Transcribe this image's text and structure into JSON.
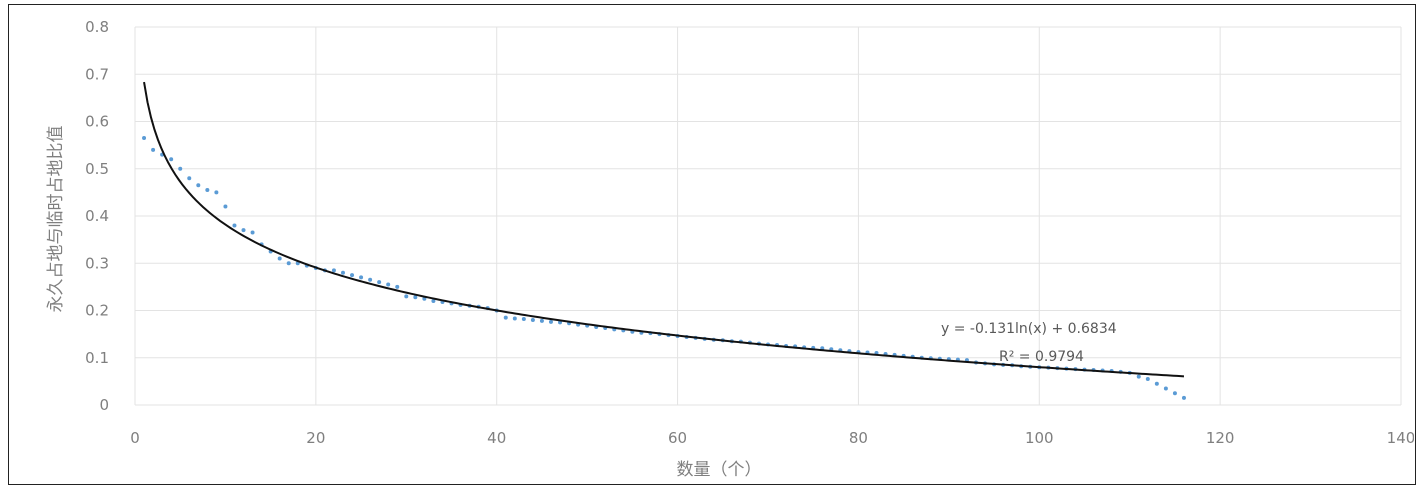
{
  "chart_data": {
    "type": "scatter",
    "xlabel": "数量（个）",
    "ylabel": "永久占地与临时占地比值",
    "xlim": [
      0,
      140
    ],
    "ylim": [
      0,
      0.8
    ],
    "x_ticks": [
      "0",
      "20",
      "40",
      "60",
      "80",
      "100",
      "120",
      "140"
    ],
    "y_ticks": [
      "0",
      "0.1",
      "0.2",
      "0.3",
      "0.4",
      "0.5",
      "0.6",
      "0.7",
      "0.8"
    ],
    "grid": true,
    "series": [
      {
        "marker_color": "#5b9bd5",
        "x": [
          1,
          2,
          3,
          4,
          5,
          6,
          7,
          8,
          9,
          10,
          11,
          12,
          13,
          14,
          15,
          16,
          17,
          18,
          19,
          20,
          21,
          22,
          23,
          24,
          25,
          26,
          27,
          28,
          29,
          30,
          31,
          32,
          33,
          34,
          35,
          36,
          37,
          38,
          39,
          40,
          41,
          42,
          43,
          44,
          45,
          46,
          47,
          48,
          49,
          50,
          51,
          52,
          53,
          54,
          55,
          56,
          57,
          58,
          59,
          60,
          61,
          62,
          63,
          64,
          65,
          66,
          67,
          68,
          69,
          70,
          71,
          72,
          73,
          74,
          75,
          76,
          77,
          78,
          79,
          80,
          81,
          82,
          83,
          84,
          85,
          86,
          87,
          88,
          89,
          90,
          91,
          92,
          93,
          94,
          95,
          96,
          97,
          98,
          99,
          100,
          101,
          102,
          103,
          104,
          105,
          106,
          107,
          108,
          109,
          110,
          111,
          112,
          113,
          114,
          115,
          116
        ],
        "y": [
          0.565,
          0.54,
          0.53,
          0.52,
          0.5,
          0.48,
          0.465,
          0.455,
          0.45,
          0.42,
          0.38,
          0.37,
          0.365,
          0.34,
          0.325,
          0.31,
          0.3,
          0.3,
          0.295,
          0.29,
          0.285,
          0.285,
          0.28,
          0.275,
          0.27,
          0.265,
          0.26,
          0.255,
          0.25,
          0.23,
          0.228,
          0.225,
          0.22,
          0.218,
          0.215,
          0.212,
          0.21,
          0.208,
          0.205,
          0.2,
          0.185,
          0.183,
          0.182,
          0.18,
          0.178,
          0.176,
          0.175,
          0.173,
          0.17,
          0.168,
          0.165,
          0.163,
          0.16,
          0.158,
          0.155,
          0.153,
          0.152,
          0.15,
          0.148,
          0.146,
          0.144,
          0.142,
          0.14,
          0.138,
          0.137,
          0.135,
          0.134,
          0.132,
          0.13,
          0.128,
          0.127,
          0.125,
          0.124,
          0.122,
          0.121,
          0.12,
          0.118,
          0.116,
          0.114,
          0.112,
          0.111,
          0.11,
          0.108,
          0.106,
          0.104,
          0.102,
          0.1,
          0.099,
          0.098,
          0.097,
          0.096,
          0.095,
          0.09,
          0.088,
          0.086,
          0.085,
          0.084,
          0.082,
          0.081,
          0.08,
          0.079,
          0.078,
          0.077,
          0.076,
          0.075,
          0.074,
          0.073,
          0.072,
          0.07,
          0.068,
          0.06,
          0.055,
          0.045,
          0.035,
          0.025,
          0.015
        ]
      }
    ],
    "trendline": {
      "type": "log",
      "a": -0.131,
      "b": 0.6834,
      "x_range": [
        1,
        116
      ],
      "color": "#111111"
    },
    "annotations": {
      "equation": "y = -0.131ln(x) + 0.6834",
      "r_squared": "R² = 0.9794"
    }
  }
}
